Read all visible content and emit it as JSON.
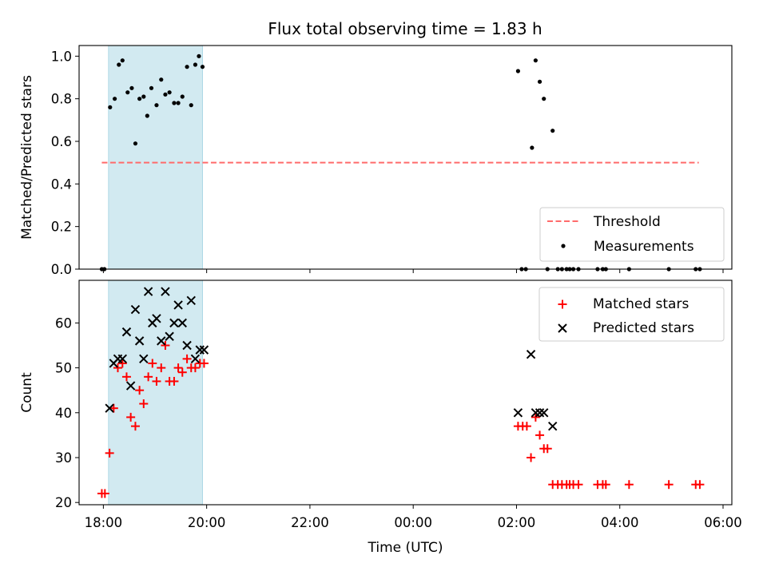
{
  "title": "Flux total observing time = 1.83 h",
  "colors": {
    "highlight": "#add8e6",
    "threshold": "#ff6b6b",
    "measurements": "#000000",
    "matched": "#ff0000",
    "predicted": "#000000"
  },
  "chart_data": [
    {
      "type": "scatter",
      "panel": "top",
      "ylabel": "Matched/Predicted stars",
      "xlabel": "",
      "xlim_hours": [
        17.53,
        30.17
      ],
      "ylim": [
        0,
        1.05
      ],
      "yticks": [
        0.0,
        0.2,
        0.4,
        0.6,
        0.8,
        1.0
      ],
      "ytick_labels": [
        "0.0",
        "0.2",
        "0.4",
        "0.6",
        "0.8",
        "1.0"
      ],
      "xtick_labels": [
        "18:00",
        "20:00",
        "22:00",
        "00:00",
        "02:00",
        "04:00",
        "06:00"
      ],
      "xtick_hours": [
        18,
        20,
        22,
        24,
        26,
        28,
        30
      ],
      "shade_span_hours": [
        18.1,
        19.92
      ],
      "grid": false,
      "legend_position": "lower-right",
      "legend": [
        "Threshold",
        "Measurements"
      ],
      "threshold": {
        "name": "Threshold",
        "y": 0.5,
        "x_hours": [
          17.97,
          29.53
        ]
      },
      "series": [
        {
          "name": "Measurements",
          "x_hours": [
            17.97,
            18.02,
            18.13,
            18.22,
            18.3,
            18.37,
            18.47,
            18.55,
            18.62,
            18.7,
            18.78,
            18.85,
            18.93,
            19.03,
            19.12,
            19.2,
            19.28,
            19.37,
            19.45,
            19.53,
            19.62,
            19.7,
            19.78,
            19.85,
            19.92,
            26.03,
            26.1,
            26.18,
            26.3,
            26.37,
            26.45,
            26.53,
            26.6,
            26.7,
            26.8,
            26.88,
            26.97,
            27.03,
            27.1,
            27.2,
            27.57,
            27.67,
            27.73,
            28.18,
            28.95,
            29.47,
            29.55
          ],
          "y": [
            0.0,
            0.0,
            0.76,
            0.8,
            0.96,
            0.98,
            0.83,
            0.85,
            0.59,
            0.8,
            0.81,
            0.72,
            0.85,
            0.77,
            0.89,
            0.82,
            0.83,
            0.78,
            0.78,
            0.81,
            0.95,
            0.77,
            0.96,
            1.0,
            0.95,
            0.93,
            0.0,
            0.0,
            0.57,
            0.98,
            0.88,
            0.8,
            0.0,
            0.65,
            0.0,
            0.0,
            0.0,
            0.0,
            0.0,
            0.0,
            0.0,
            0.0,
            0.0,
            0.0,
            0.0,
            0.0,
            0.0
          ]
        }
      ]
    },
    {
      "type": "scatter",
      "panel": "bottom",
      "ylabel": "Count",
      "xlabel": "Time (UTC)",
      "xlim_hours": [
        17.53,
        30.17
      ],
      "ylim": [
        19.5,
        69.5
      ],
      "yticks": [
        20,
        30,
        40,
        50,
        60
      ],
      "ytick_labels": [
        "20",
        "30",
        "40",
        "50",
        "60"
      ],
      "xtick_labels": [
        "18:00",
        "20:00",
        "22:00",
        "00:00",
        "02:00",
        "04:00",
        "06:00"
      ],
      "xtick_hours": [
        18,
        20,
        22,
        24,
        26,
        28,
        30
      ],
      "shade_span_hours": [
        18.1,
        19.92
      ],
      "grid": false,
      "legend_position": "upper-right",
      "legend": [
        "Matched stars",
        "Predicted stars"
      ],
      "series": [
        {
          "name": "Matched stars",
          "marker": "+",
          "x_hours": [
            17.97,
            18.03,
            18.12,
            18.2,
            18.28,
            18.37,
            18.45,
            18.53,
            18.62,
            18.7,
            18.78,
            18.87,
            18.95,
            19.03,
            19.12,
            19.2,
            19.28,
            19.37,
            19.45,
            19.53,
            19.62,
            19.7,
            19.78,
            19.87,
            19.95,
            26.03,
            26.12,
            26.2,
            26.28,
            26.37,
            26.45,
            26.53,
            26.6,
            26.7,
            26.8,
            26.88,
            26.97,
            27.03,
            27.1,
            27.2,
            27.57,
            27.67,
            27.73,
            28.18,
            28.95,
            29.47,
            29.55
          ],
          "y": [
            22,
            22,
            31,
            41,
            50,
            51,
            48,
            39,
            37,
            45,
            42,
            48,
            51,
            47,
            50,
            55,
            47,
            47,
            50,
            49,
            52,
            50,
            50,
            51,
            51,
            37,
            37,
            37,
            30,
            39,
            35,
            32,
            32,
            24,
            24,
            24,
            24,
            24,
            24,
            24,
            24,
            24,
            24,
            24,
            24,
            24,
            24
          ]
        },
        {
          "name": "Predicted stars",
          "marker": "x",
          "x_hours": [
            18.12,
            18.2,
            18.28,
            18.37,
            18.45,
            18.53,
            18.62,
            18.7,
            18.78,
            18.87,
            18.95,
            19.03,
            19.12,
            19.2,
            19.28,
            19.37,
            19.45,
            19.53,
            19.62,
            19.7,
            19.78,
            19.87,
            19.95,
            26.03,
            26.28,
            26.37,
            26.45,
            26.53,
            26.7
          ],
          "y": [
            41,
            51,
            52,
            52,
            58,
            46,
            63,
            56,
            52,
            67,
            60,
            61,
            56,
            67,
            57,
            60,
            64,
            60,
            55,
            65,
            52,
            54,
            54,
            40,
            53,
            40,
            40,
            40,
            37
          ]
        }
      ]
    }
  ]
}
